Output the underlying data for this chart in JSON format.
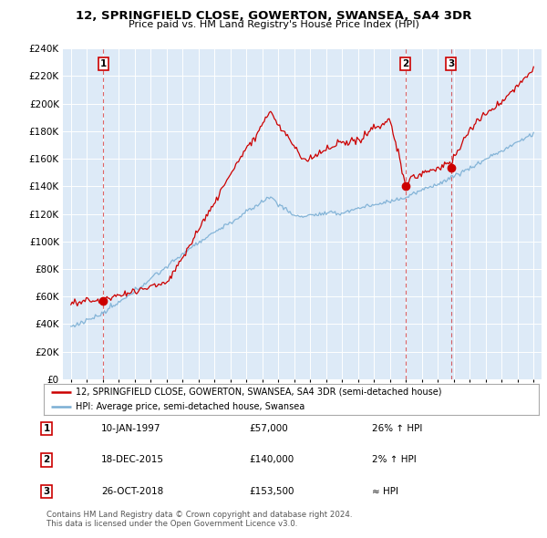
{
  "title": "12, SPRINGFIELD CLOSE, GOWERTON, SWANSEA, SA4 3DR",
  "subtitle": "Price paid vs. HM Land Registry's House Price Index (HPI)",
  "property_label": "12, SPRINGFIELD CLOSE, GOWERTON, SWANSEA, SA4 3DR (semi-detached house)",
  "hpi_label": "HPI: Average price, semi-detached house, Swansea",
  "property_color": "#cc0000",
  "hpi_color": "#7aaed4",
  "background_color": "#ddeaf7",
  "vline_color": "#cc0000",
  "sale_dates": [
    1997.03,
    2015.96,
    2018.82
  ],
  "sale_prices": [
    57000,
    140000,
    153500
  ],
  "sale_labels": [
    "1",
    "2",
    "3"
  ],
  "table_rows": [
    {
      "num": "1",
      "date": "10-JAN-1997",
      "price": "£57,000",
      "rel": "26% ↑ HPI"
    },
    {
      "num": "2",
      "date": "18-DEC-2015",
      "price": "£140,000",
      "rel": "2% ↑ HPI"
    },
    {
      "num": "3",
      "date": "26-OCT-2018",
      "price": "£153,500",
      "rel": "≈ HPI"
    }
  ],
  "footer": "Contains HM Land Registry data © Crown copyright and database right 2024.\nThis data is licensed under the Open Government Licence v3.0.",
  "ylim": [
    0,
    240000
  ],
  "ytick_step": 20000,
  "xmin": 1994.5,
  "xmax": 2024.5
}
